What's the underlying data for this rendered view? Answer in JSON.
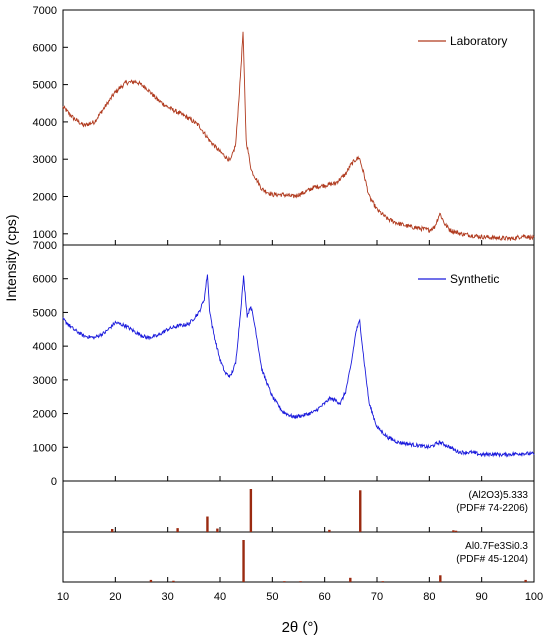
{
  "figure": {
    "ylabel": "Intensity (cps)",
    "xlabel": "2θ (°)",
    "x_ticks": [
      10,
      20,
      30,
      40,
      50,
      60,
      70,
      80,
      90,
      100
    ],
    "y_ticks": [
      1000,
      2000,
      3000,
      4000,
      5000,
      6000,
      7000
    ],
    "y_ticks_lower": [
      0,
      1000,
      2000,
      3000,
      4000,
      5000,
      6000,
      7000
    ]
  },
  "chart_data": [
    {
      "type": "line",
      "xlim": [
        10,
        100
      ],
      "ylim": [
        700,
        7000
      ],
      "series": [
        {
          "name": "Laboratory",
          "color": "#b03a1e",
          "x": [
            10,
            12,
            14,
            16,
            18,
            20,
            22,
            24,
            26,
            28,
            30,
            32,
            34,
            36,
            38,
            40,
            42,
            43,
            43.8,
            44.4,
            45,
            46,
            48,
            50,
            52,
            54,
            56,
            58,
            60,
            62,
            64,
            65,
            66,
            66.6,
            67.5,
            68.5,
            70,
            72,
            74,
            76,
            78,
            80,
            81,
            82,
            83,
            84,
            86,
            88,
            90,
            92,
            94,
            96,
            98,
            100
          ],
          "y": [
            4400,
            4100,
            3900,
            4000,
            4400,
            4800,
            5050,
            5080,
            4900,
            4600,
            4400,
            4250,
            4100,
            3900,
            3500,
            3200,
            2950,
            3400,
            5000,
            6400,
            3500,
            2700,
            2200,
            2050,
            2050,
            2000,
            2100,
            2250,
            2300,
            2350,
            2600,
            2850,
            3000,
            3050,
            2600,
            2000,
            1650,
            1400,
            1280,
            1200,
            1150,
            1100,
            1180,
            1550,
            1250,
            1100,
            1000,
            960,
            920,
            900,
            880,
            870,
            950,
            880
          ]
        }
      ]
    },
    {
      "type": "line",
      "xlim": [
        10,
        100
      ],
      "ylim": [
        0,
        7000
      ],
      "series": [
        {
          "name": "Synthetic",
          "color": "#1a1adc",
          "x": [
            10,
            12,
            14,
            16,
            18,
            20,
            22,
            24,
            26,
            28,
            30,
            32,
            34,
            36,
            37,
            37.6,
            38,
            38.5,
            39.2,
            40,
            41,
            42,
            43,
            43.8,
            44.5,
            45.2,
            45.9,
            46.8,
            48,
            50,
            52,
            54,
            56,
            58,
            60,
            61,
            62,
            63,
            64,
            65,
            66,
            66.7,
            67.5,
            68.5,
            70,
            72,
            74,
            76,
            78,
            80,
            82,
            84,
            85,
            86,
            88,
            90,
            92,
            94,
            96,
            98,
            100
          ],
          "y": [
            4800,
            4500,
            4300,
            4250,
            4400,
            4700,
            4600,
            4400,
            4250,
            4300,
            4500,
            4600,
            4650,
            5000,
            5400,
            6150,
            5100,
            4600,
            4100,
            3600,
            3200,
            3100,
            3500,
            4800,
            6050,
            4900,
            5200,
            4500,
            3300,
            2500,
            2050,
            1900,
            1950,
            2050,
            2300,
            2450,
            2400,
            2300,
            2650,
            3400,
            4450,
            4750,
            3600,
            2300,
            1600,
            1300,
            1150,
            1100,
            1050,
            1000,
            1150,
            1000,
            900,
            850,
            850,
            780,
            800,
            780,
            800,
            820,
            800
          ]
        }
      ]
    },
    {
      "type": "bar",
      "xlim": [
        10,
        100
      ],
      "name": "(Al2O3)5.333",
      "reference": "(PDF#  74-2206)",
      "color": "#9a2a10",
      "x": [
        19.4,
        31.9,
        37.6,
        39.5,
        45.9,
        60.9,
        66.8,
        84.6,
        85.1
      ],
      "values": [
        0.07,
        0.09,
        0.36,
        0.08,
        1.0,
        0.05,
        0.97,
        0.04,
        0.03
      ]
    },
    {
      "type": "bar",
      "xlim": [
        10,
        100
      ],
      "name": "Al0.7Fe3Si0.3",
      "reference": "(PDF# 45-1204)",
      "color": "#9a2a10",
      "x": [
        26.8,
        31.1,
        44.5,
        52.3,
        55.4,
        64.9,
        71.1,
        82.1,
        98.4
      ],
      "values": [
        0.05,
        0.03,
        1.0,
        0.02,
        0.02,
        0.1,
        0.02,
        0.16,
        0.05
      ]
    }
  ]
}
